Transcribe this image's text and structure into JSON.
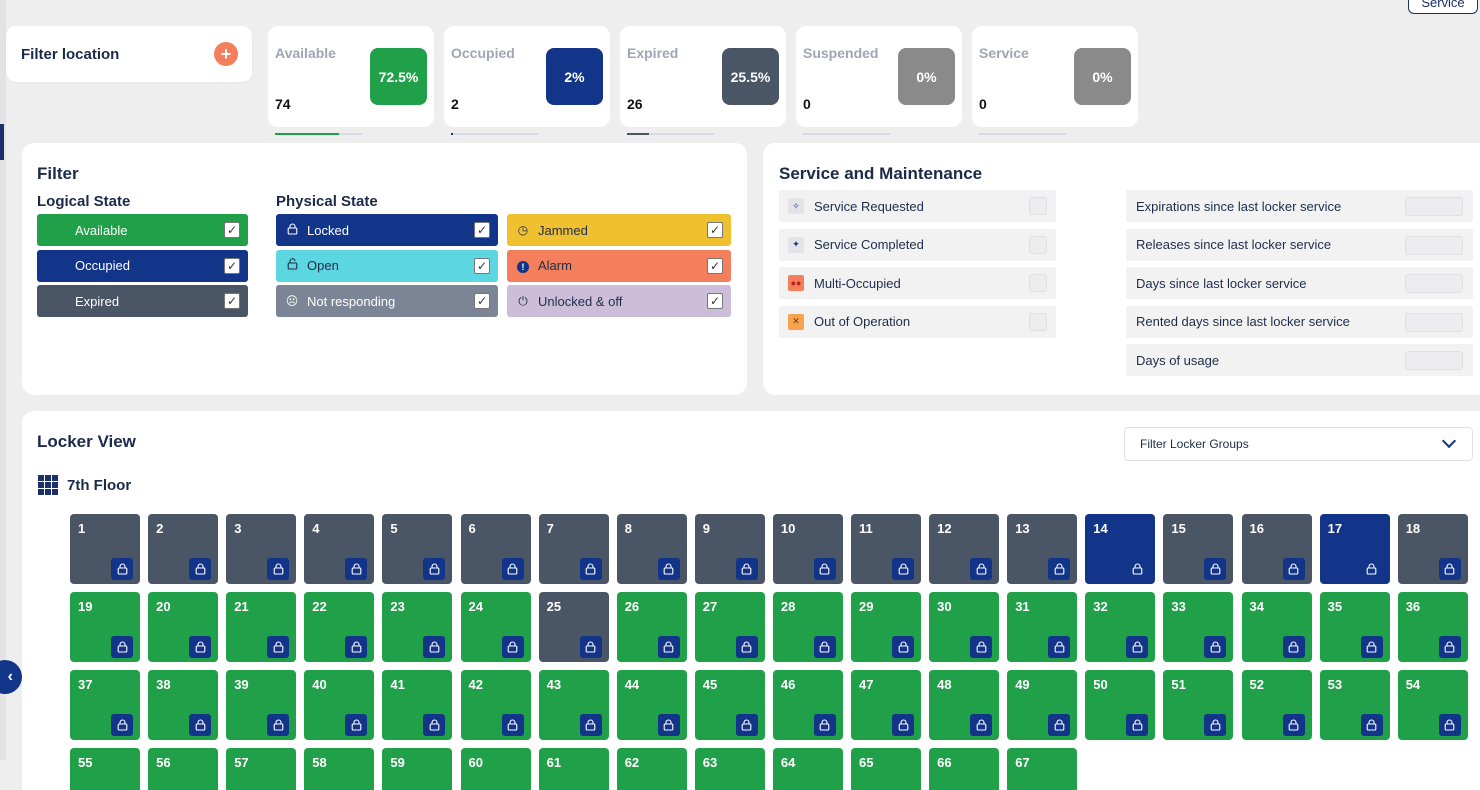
{
  "header": {
    "service_button": "Service"
  },
  "filter_location": {
    "title": "Filter location",
    "add_icon": "plus-icon"
  },
  "stats": [
    {
      "label": "Available",
      "value": "74",
      "pct": "72.5%",
      "fraction": 0.725,
      "color": "#21a04a"
    },
    {
      "label": "Occupied",
      "value": "2",
      "pct": "2%",
      "fraction": 0.02,
      "color": "#12358a"
    },
    {
      "label": "Expired",
      "value": "26",
      "pct": "25.5%",
      "fraction": 0.255,
      "color": "#4a5566"
    },
    {
      "label": "Suspended",
      "value": "0",
      "pct": "0%",
      "fraction": 0,
      "color": "#8a8a8a"
    },
    {
      "label": "Service",
      "value": "0",
      "pct": "0%",
      "fraction": 0,
      "color": "#8a8a8a"
    }
  ],
  "filter": {
    "title": "Filter",
    "logical_title": "Logical State",
    "physical_title": "Physical State",
    "logical": [
      {
        "label": "Available",
        "color": "#21a04a",
        "checked": true
      },
      {
        "label": "Occupied",
        "color": "#12358a",
        "checked": true
      },
      {
        "label": "Expired",
        "color": "#4a5566",
        "checked": true
      }
    ],
    "physical": [
      {
        "label": "Locked",
        "icon": "lock-icon",
        "color": "#12358a",
        "text": "#ffffff",
        "checked": true
      },
      {
        "label": "Jammed",
        "icon": "clock-icon",
        "color": "#efc02f",
        "text": "#1f2c48",
        "checked": true
      },
      {
        "label": "Open",
        "icon": "unlock-icon",
        "color": "#5cd6e0",
        "text": "#1f2c48",
        "checked": true
      },
      {
        "label": "Alarm",
        "icon": "alert-icon",
        "color": "#f47f5c",
        "text": "#1f2c48",
        "checked": true
      },
      {
        "label": "Not responding",
        "icon": "sad-face-icon",
        "color": "#7c8596",
        "text": "#ffffff",
        "checked": true
      },
      {
        "label": "Unlocked & off",
        "icon": "power-icon",
        "color": "#ccbdd9",
        "text": "#1f2c48",
        "checked": true
      }
    ]
  },
  "service": {
    "title": "Service and Maintenance",
    "left": [
      {
        "label": "Service Requested",
        "icon": "sparkle-outline-icon"
      },
      {
        "label": "Service Completed",
        "icon": "sparkle-filled-icon"
      },
      {
        "label": "Multi-Occupied",
        "icon": "users-icon"
      },
      {
        "label": "Out of Operation",
        "icon": "x-icon"
      }
    ],
    "right": [
      "Expirations since last locker service",
      "Releases since last locker service",
      "Days since last locker service",
      "Rented days since last locker service",
      "Days of usage"
    ]
  },
  "locker_view": {
    "title": "Locker View",
    "filter_groups_placeholder": "Filter Locker Groups",
    "floor": "7th Floor",
    "colors": {
      "available": "#21a04a",
      "occupied": "#12358a",
      "expired": "#4a5566"
    },
    "lockers": [
      {
        "n": "1",
        "s": "expired"
      },
      {
        "n": "2",
        "s": "expired"
      },
      {
        "n": "3",
        "s": "expired"
      },
      {
        "n": "4",
        "s": "expired"
      },
      {
        "n": "5",
        "s": "expired"
      },
      {
        "n": "6",
        "s": "expired"
      },
      {
        "n": "7",
        "s": "expired"
      },
      {
        "n": "8",
        "s": "expired"
      },
      {
        "n": "9",
        "s": "expired"
      },
      {
        "n": "10",
        "s": "expired"
      },
      {
        "n": "11",
        "s": "expired"
      },
      {
        "n": "12",
        "s": "expired"
      },
      {
        "n": "13",
        "s": "expired"
      },
      {
        "n": "14",
        "s": "occupied"
      },
      {
        "n": "15",
        "s": "expired"
      },
      {
        "n": "16",
        "s": "expired"
      },
      {
        "n": "17",
        "s": "occupied"
      },
      {
        "n": "18",
        "s": "expired"
      },
      {
        "n": "19",
        "s": "available"
      },
      {
        "n": "20",
        "s": "available"
      },
      {
        "n": "21",
        "s": "available"
      },
      {
        "n": "22",
        "s": "available"
      },
      {
        "n": "23",
        "s": "available"
      },
      {
        "n": "24",
        "s": "available"
      },
      {
        "n": "25",
        "s": "expired"
      },
      {
        "n": "26",
        "s": "available"
      },
      {
        "n": "27",
        "s": "available"
      },
      {
        "n": "28",
        "s": "available"
      },
      {
        "n": "29",
        "s": "available"
      },
      {
        "n": "30",
        "s": "available"
      },
      {
        "n": "31",
        "s": "available"
      },
      {
        "n": "32",
        "s": "available"
      },
      {
        "n": "33",
        "s": "available"
      },
      {
        "n": "34",
        "s": "available"
      },
      {
        "n": "35",
        "s": "available"
      },
      {
        "n": "36",
        "s": "available"
      },
      {
        "n": "37",
        "s": "available"
      },
      {
        "n": "38",
        "s": "available"
      },
      {
        "n": "39",
        "s": "available"
      },
      {
        "n": "40",
        "s": "available"
      },
      {
        "n": "41",
        "s": "available"
      },
      {
        "n": "42",
        "s": "available"
      },
      {
        "n": "43",
        "s": "available"
      },
      {
        "n": "44",
        "s": "available"
      },
      {
        "n": "45",
        "s": "available"
      },
      {
        "n": "46",
        "s": "available"
      },
      {
        "n": "47",
        "s": "available"
      },
      {
        "n": "48",
        "s": "available"
      },
      {
        "n": "49",
        "s": "available"
      },
      {
        "n": "50",
        "s": "available"
      },
      {
        "n": "51",
        "s": "available"
      },
      {
        "n": "52",
        "s": "available"
      },
      {
        "n": "53",
        "s": "available"
      },
      {
        "n": "54",
        "s": "available"
      },
      {
        "n": "55",
        "s": "available"
      },
      {
        "n": "56",
        "s": "available"
      },
      {
        "n": "57",
        "s": "available"
      },
      {
        "n": "58",
        "s": "available"
      },
      {
        "n": "59",
        "s": "available"
      },
      {
        "n": "60",
        "s": "available"
      },
      {
        "n": "61",
        "s": "available"
      },
      {
        "n": "62",
        "s": "available"
      },
      {
        "n": "63",
        "s": "available"
      },
      {
        "n": "64",
        "s": "available"
      },
      {
        "n": "65",
        "s": "available"
      },
      {
        "n": "66",
        "s": "available"
      },
      {
        "n": "67",
        "s": "available"
      }
    ]
  }
}
